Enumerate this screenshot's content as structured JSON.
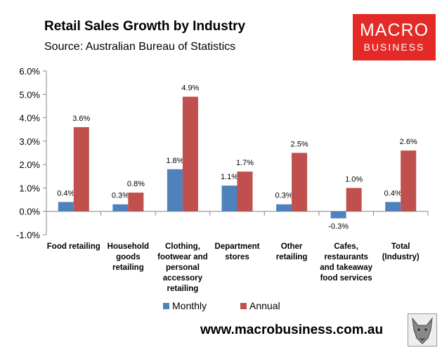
{
  "header": {
    "title": "Retail Sales Growth by Industry",
    "subtitle": "Source: Australian Bureau of Statistics"
  },
  "logo": {
    "line1": "MACRO",
    "line2": "BUSINESS"
  },
  "footer": {
    "url": "www.macrobusiness.com.au"
  },
  "colors": {
    "monthly": "#4f81bd",
    "annual": "#c0504d",
    "logo": "#e42a26"
  },
  "chart_data": {
    "type": "bar",
    "title": "Retail Sales Growth by Industry",
    "subtitle": "Source: Australian Bureau of Statistics",
    "categories": [
      [
        "Food retailing"
      ],
      [
        "Household",
        "goods",
        "retailing"
      ],
      [
        "Clothing,",
        "footwear and",
        "personal",
        "accessory",
        "retailing"
      ],
      [
        "Department",
        "stores"
      ],
      [
        "Other",
        "retailing"
      ],
      [
        "Cafes,",
        "restaurants",
        "and takeaway",
        "food services"
      ],
      [
        "Total",
        "(Industry)"
      ]
    ],
    "series": [
      {
        "name": "Monthly",
        "color": "#4f81bd",
        "values": [
          0.4,
          0.3,
          1.8,
          1.1,
          0.3,
          -0.3,
          0.4
        ],
        "labels": [
          "0.4%",
          "0.3%",
          "1.8%",
          "1.1%",
          "0.3%",
          "-0.3%",
          "0.4%"
        ]
      },
      {
        "name": "Annual",
        "color": "#c0504d",
        "values": [
          3.6,
          0.8,
          4.9,
          1.7,
          2.5,
          1.0,
          2.6
        ],
        "labels": [
          "3.6%",
          "0.8%",
          "4.9%",
          "1.7%",
          "2.5%",
          "1.0%",
          "2.6%"
        ]
      }
    ],
    "ylim": [
      -1.0,
      6.0
    ],
    "yticks": [
      6.0,
      5.0,
      4.0,
      3.0,
      2.0,
      1.0,
      0.0,
      -1.0
    ],
    "ytick_labels": [
      "6.0%",
      "5.0%",
      "4.0%",
      "3.0%",
      "2.0%",
      "1.0%",
      "0.0%",
      "-1.0%"
    ],
    "grid": false,
    "legend_position": "bottom"
  }
}
